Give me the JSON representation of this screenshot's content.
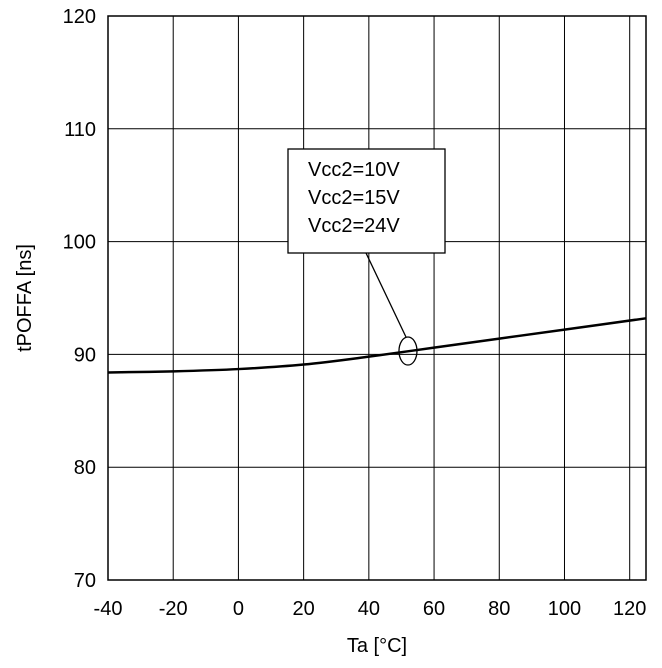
{
  "chart_data": {
    "type": "line",
    "title": "",
    "xlabel": "Ta [°C]",
    "ylabel": "tPOFFA [ns]",
    "xlim": [
      -40,
      125
    ],
    "ylim": [
      70,
      120
    ],
    "x_ticks": [
      -40,
      -20,
      0,
      20,
      40,
      60,
      80,
      100,
      120
    ],
    "y_ticks": [
      70,
      80,
      90,
      100,
      110,
      120
    ],
    "grid": true,
    "legend": "none",
    "series": [
      {
        "x": [
          -40,
          -20,
          0,
          20,
          40,
          60,
          80,
          100,
          125
        ],
        "values": [
          88.4,
          88.5,
          88.7,
          89.1,
          89.8,
          90.6,
          91.4,
          92.2,
          93.2
        ]
      }
    ],
    "annotation": {
      "lines": [
        "Vcc2=10V",
        "Vcc2=15V",
        "Vcc2=24V"
      ],
      "target_x": 52,
      "target_y": 90.3
    },
    "colors": {
      "line": "#000000",
      "grid": "#000000",
      "background": "#ffffff"
    }
  }
}
